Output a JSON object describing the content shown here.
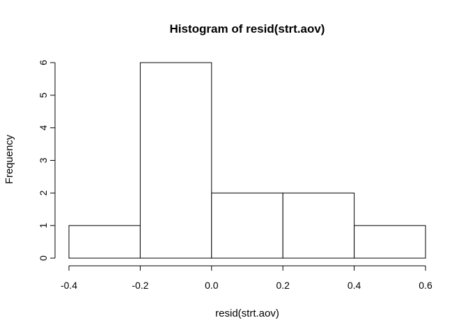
{
  "chart_data": {
    "type": "bar",
    "title": "Histogram of resid(strt.aov)",
    "xlabel": "resid(strt.aov)",
    "ylabel": "Frequency",
    "bins": [
      {
        "from": -0.4,
        "to": -0.2,
        "count": 1
      },
      {
        "from": -0.2,
        "to": 0.0,
        "count": 6
      },
      {
        "from": 0.0,
        "to": 0.2,
        "count": 2
      },
      {
        "from": 0.2,
        "to": 0.4,
        "count": 2
      },
      {
        "from": 0.4,
        "to": 0.6,
        "count": 1
      }
    ],
    "x_ticks": [
      -0.4,
      -0.2,
      0.0,
      0.2,
      0.4,
      0.6
    ],
    "x_tick_labels": [
      "-0.4",
      "-0.2",
      "0.0",
      "0.2",
      "0.4",
      "0.6"
    ],
    "y_ticks": [
      0,
      1,
      2,
      3,
      4,
      5,
      6
    ],
    "y_tick_labels": [
      "0",
      "1",
      "2",
      "3",
      "4",
      "5",
      "6"
    ],
    "xlim": [
      -0.4,
      0.6
    ],
    "ylim": [
      0,
      6
    ],
    "grid": false,
    "colors": {
      "bar_fill": "#ffffff",
      "bar_stroke": "#000000"
    }
  }
}
